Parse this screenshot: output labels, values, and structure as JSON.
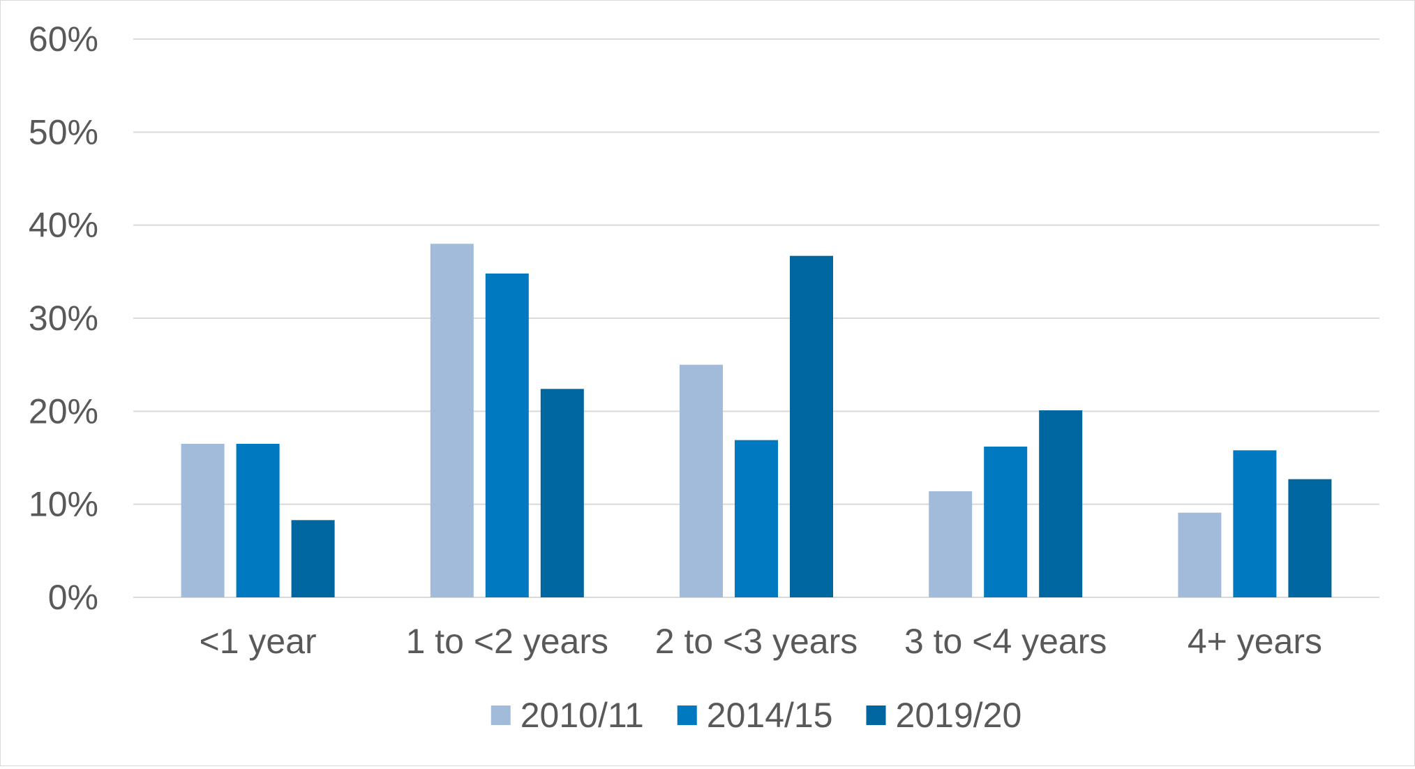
{
  "chart_data": {
    "type": "bar",
    "categories": [
      "<1 year",
      "1 to <2 years",
      "2 to <3 years",
      "3 to <4 years",
      "4+ years"
    ],
    "series": [
      {
        "name": "2010/11",
        "color": "#a3bbdb",
        "values": [
          16.5,
          38.0,
          25.0,
          11.4,
          9.1
        ]
      },
      {
        "name": "2014/15",
        "color": "#0079c1",
        "values": [
          16.5,
          34.8,
          16.9,
          16.2,
          15.8
        ]
      },
      {
        "name": "2019/20",
        "color": "#00669f",
        "values": [
          8.3,
          22.4,
          36.7,
          20.1,
          12.7
        ]
      }
    ],
    "y_ticks": [
      "0%",
      "10%",
      "20%",
      "30%",
      "40%",
      "50%",
      "60%"
    ],
    "ylim": [
      0,
      60
    ],
    "unit": "%",
    "grid": true,
    "legend_position": "bottom",
    "colors": {
      "grid": "#d9d9d9",
      "text": "#595959"
    }
  }
}
